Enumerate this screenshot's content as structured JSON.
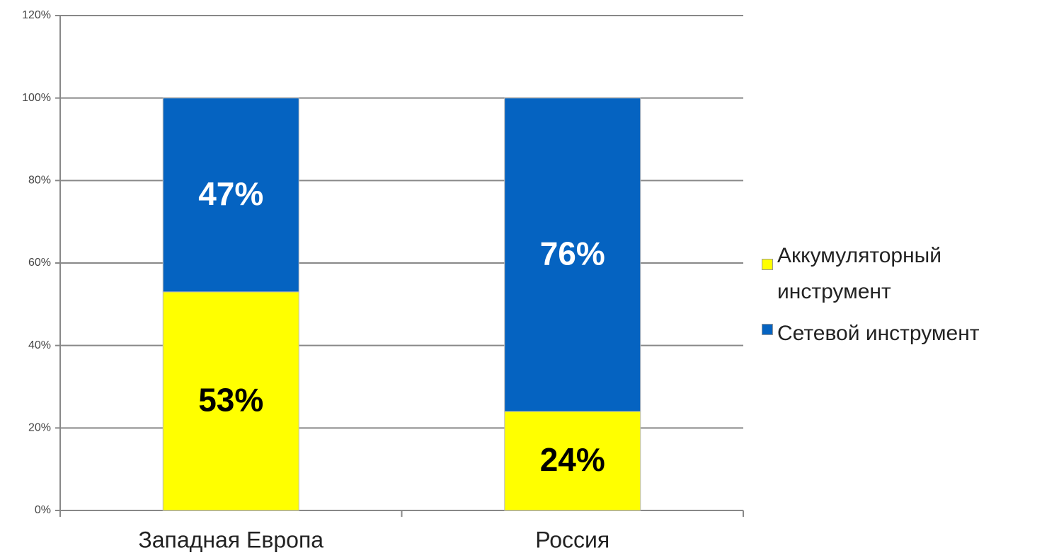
{
  "chart_data": {
    "type": "stacked_bar",
    "categories": [
      "Западная Европа",
      "Россия"
    ],
    "series": [
      {
        "name": "Аккумуляторный инструмент",
        "color": "#ffff00",
        "values": [
          53,
          24
        ],
        "value_labels": [
          "53%",
          "24%"
        ],
        "label_color": "#000000"
      },
      {
        "name": "Сетевой инструмент",
        "color": "#0563c1",
        "values": [
          47,
          76
        ],
        "value_labels": [
          "47%",
          "76%"
        ],
        "label_color": "#ffffff"
      }
    ],
    "ylim": [
      0,
      120
    ],
    "yticks": [
      {
        "value": 0,
        "label": "0%"
      },
      {
        "value": 20,
        "label": "20%"
      },
      {
        "value": 40,
        "label": "40%"
      },
      {
        "value": 60,
        "label": "60%"
      },
      {
        "value": 80,
        "label": "80%"
      },
      {
        "value": 100,
        "label": "100%"
      },
      {
        "value": 120,
        "label": "120%"
      }
    ],
    "grid": true,
    "legend": "right"
  }
}
